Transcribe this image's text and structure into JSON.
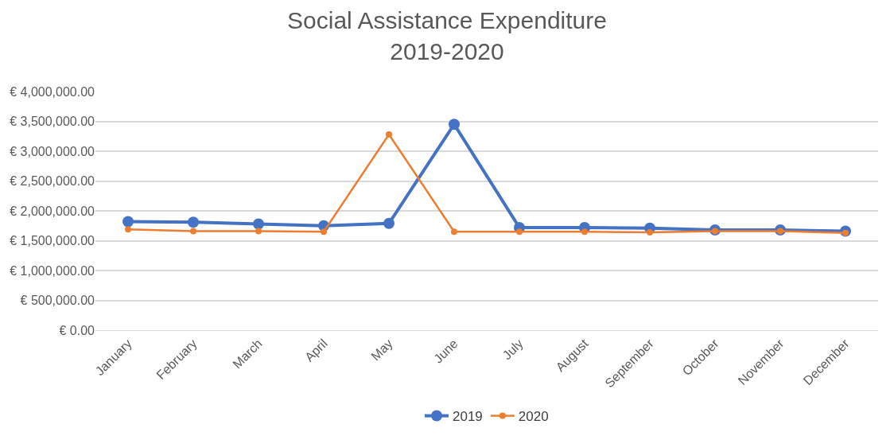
{
  "chart_data": {
    "type": "line",
    "title": "Social Assistance Expenditure\n2019-2020",
    "categories": [
      "January",
      "February",
      "March",
      "April",
      "May",
      "June",
      "July",
      "August",
      "September",
      "October",
      "November",
      "December"
    ],
    "series": [
      {
        "name": "2019",
        "color": "#4472c4",
        "values": [
          1820000,
          1810000,
          1780000,
          1750000,
          1790000,
          3450000,
          1720000,
          1720000,
          1710000,
          1680000,
          1680000,
          1660000
        ]
      },
      {
        "name": "2020",
        "color": "#ed7d31",
        "values": [
          1690000,
          1660000,
          1660000,
          1650000,
          3280000,
          1650000,
          1650000,
          1650000,
          1640000,
          1660000,
          1660000,
          1630000
        ]
      }
    ],
    "ylim": [
      0,
      4000000
    ],
    "yticks": [
      {
        "value": 0,
        "label": "€ 0.00"
      },
      {
        "value": 500000,
        "label": "€ 500,000.00"
      },
      {
        "value": 1000000,
        "label": "€ 1,000,000.00"
      },
      {
        "value": 1500000,
        "label": "€ 1,500,000.00"
      },
      {
        "value": 2000000,
        "label": "€ 2,000,000.00"
      },
      {
        "value": 2500000,
        "label": "€ 2,500,000.00"
      },
      {
        "value": 3000000,
        "label": "€ 3,000,000.00"
      },
      {
        "value": 3500000,
        "label": "€ 3,500,000.00"
      },
      {
        "value": 4000000,
        "label": "€ 4,000,000.00"
      }
    ],
    "grid": "y",
    "legend": "bottom",
    "marker": "circle",
    "line_style": "solid"
  }
}
